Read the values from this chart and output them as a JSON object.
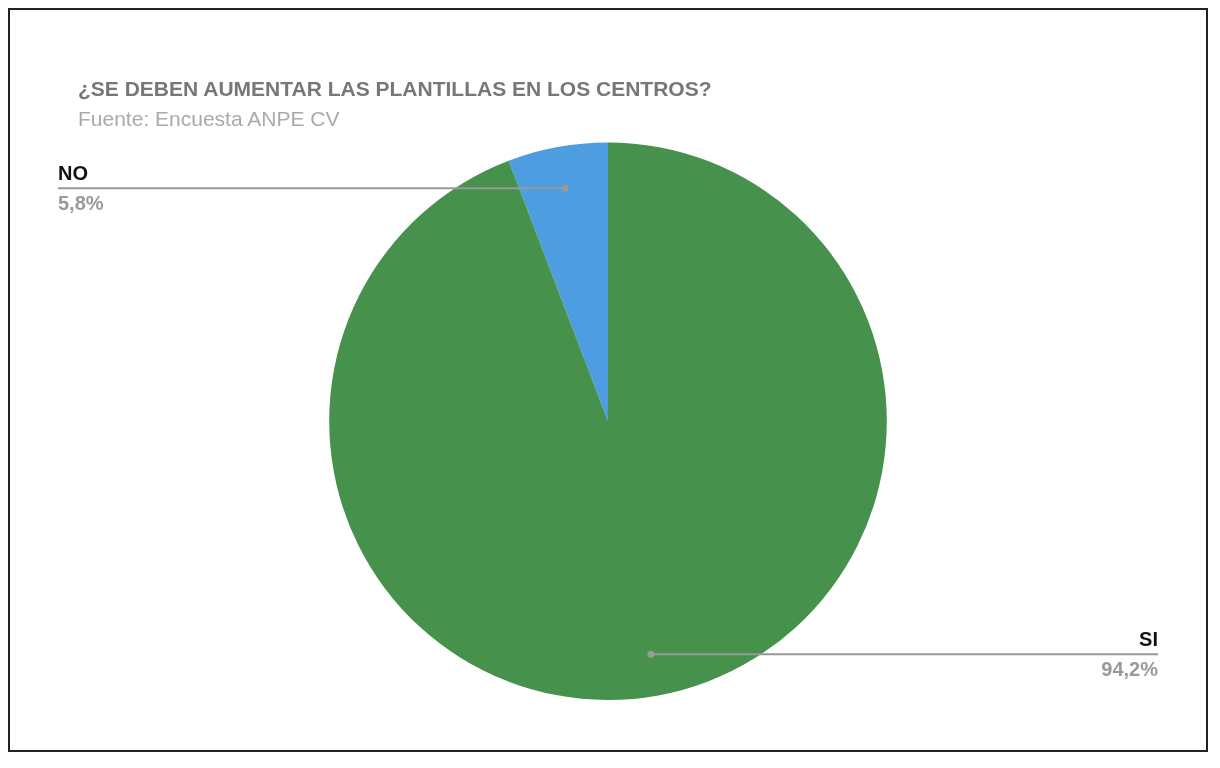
{
  "chart_data": {
    "type": "pie",
    "title": "¿SE DEBEN AUMENTAR LAS PLANTILLAS EN LOS CENTROS?",
    "subtitle": "Fuente: Encuesta ANPE CV",
    "categories": [
      "NO",
      "SI"
    ],
    "values": [
      5.8,
      94.2
    ],
    "value_labels": [
      "5,8%",
      "94,2%"
    ],
    "colors": [
      "#4d9de0",
      "#46924c"
    ],
    "legend": false
  }
}
